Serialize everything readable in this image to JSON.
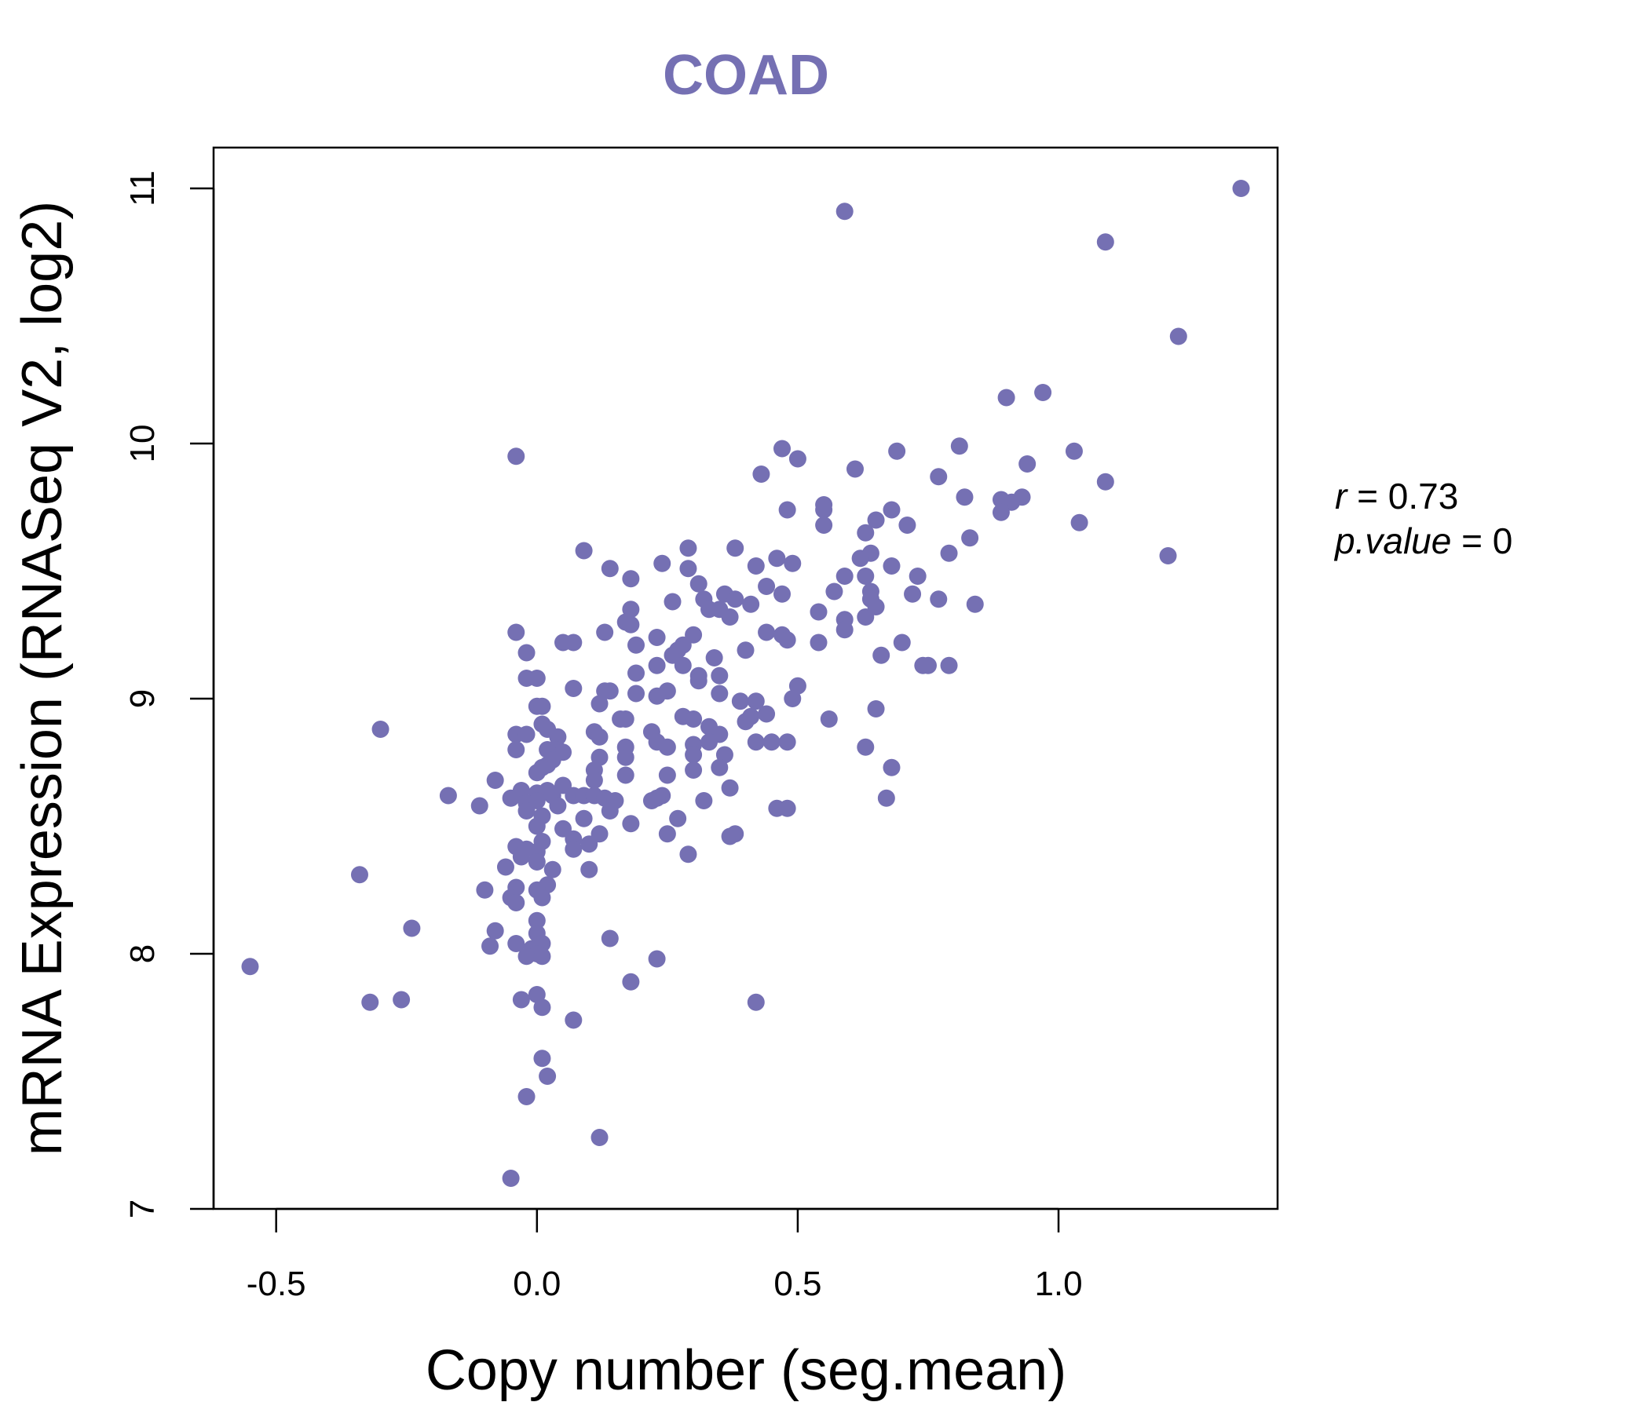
{
  "chart_data": {
    "type": "scatter",
    "title": "COAD",
    "xlabel": "Copy number (seg.mean)",
    "ylabel": "mRNA Expression (RNASeq V2, log2)",
    "xlim": [
      -0.62,
      1.42
    ],
    "ylim": [
      7.0,
      11.16
    ],
    "xticks": [
      -0.5,
      0.0,
      0.5,
      1.0
    ],
    "xtick_labels": [
      "-0.5",
      "0.0",
      "0.5",
      "1.0"
    ],
    "yticks": [
      7,
      8,
      9,
      10,
      11
    ],
    "ytick_labels": [
      "7",
      "8",
      "9",
      "10",
      "11"
    ],
    "grid": false,
    "point_color": "#7570b3",
    "annotations": {
      "r_symbol": "r",
      "r_value": "0.73",
      "p_symbol": "p.value",
      "p_value": "0"
    },
    "series": [
      {
        "points": [
          [
            1.35,
            11.0
          ],
          [
            0.59,
            10.91
          ],
          [
            1.09,
            10.79
          ],
          [
            1.23,
            10.42
          ],
          [
            0.97,
            10.2
          ],
          [
            0.9,
            10.18
          ],
          [
            0.81,
            9.99
          ],
          [
            0.47,
            9.98
          ],
          [
            0.69,
            9.97
          ],
          [
            1.03,
            9.97
          ],
          [
            0.5,
            9.94
          ],
          [
            -0.04,
            9.95
          ],
          [
            0.94,
            9.92
          ],
          [
            0.61,
            9.9
          ],
          [
            0.43,
            9.88
          ],
          [
            0.77,
            9.87
          ],
          [
            1.09,
            9.85
          ],
          [
            0.82,
            9.79
          ],
          [
            0.93,
            9.79
          ],
          [
            0.89,
            9.78
          ],
          [
            0.91,
            9.77
          ],
          [
            0.55,
            9.76
          ],
          [
            0.55,
            9.74
          ],
          [
            0.48,
            9.74
          ],
          [
            0.68,
            9.74
          ],
          [
            0.89,
            9.73
          ],
          [
            0.65,
            9.7
          ],
          [
            1.04,
            9.69
          ],
          [
            0.55,
            9.68
          ],
          [
            0.71,
            9.68
          ],
          [
            0.63,
            9.65
          ],
          [
            0.83,
            9.63
          ],
          [
            0.38,
            9.59
          ],
          [
            0.29,
            9.59
          ],
          [
            0.09,
            9.58
          ],
          [
            0.79,
            9.57
          ],
          [
            0.64,
            9.57
          ],
          [
            0.62,
            9.55
          ],
          [
            1.21,
            9.56
          ],
          [
            0.46,
            9.55
          ],
          [
            0.24,
            9.53
          ],
          [
            0.49,
            9.53
          ],
          [
            0.42,
            9.52
          ],
          [
            0.68,
            9.52
          ],
          [
            0.14,
            9.51
          ],
          [
            0.29,
            9.51
          ],
          [
            0.59,
            9.48
          ],
          [
            0.63,
            9.48
          ],
          [
            0.73,
            9.48
          ],
          [
            0.18,
            9.47
          ],
          [
            0.31,
            9.45
          ],
          [
            0.44,
            9.44
          ],
          [
            0.64,
            9.42
          ],
          [
            0.57,
            9.42
          ],
          [
            0.47,
            9.41
          ],
          [
            0.36,
            9.41
          ],
          [
            0.72,
            9.41
          ],
          [
            0.32,
            9.39
          ],
          [
            0.38,
            9.39
          ],
          [
            0.64,
            9.39
          ],
          [
            0.77,
            9.39
          ],
          [
            0.26,
            9.38
          ],
          [
            0.41,
            9.37
          ],
          [
            0.84,
            9.37
          ],
          [
            0.65,
            9.36
          ],
          [
            0.33,
            9.35
          ],
          [
            0.35,
            9.35
          ],
          [
            0.18,
            9.35
          ],
          [
            0.54,
            9.34
          ],
          [
            0.37,
            9.32
          ],
          [
            0.63,
            9.32
          ],
          [
            0.59,
            9.31
          ],
          [
            0.17,
            9.3
          ],
          [
            0.18,
            9.29
          ],
          [
            0.59,
            9.27
          ],
          [
            0.13,
            9.26
          ],
          [
            0.44,
            9.26
          ],
          [
            0.47,
            9.25
          ],
          [
            -0.04,
            9.26
          ],
          [
            0.3,
            9.25
          ],
          [
            0.23,
            9.24
          ],
          [
            0.48,
            9.23
          ],
          [
            0.7,
            9.22
          ],
          [
            0.05,
            9.22
          ],
          [
            0.54,
            9.22
          ],
          [
            0.07,
            9.22
          ],
          [
            0.19,
            9.21
          ],
          [
            0.28,
            9.21
          ],
          [
            0.27,
            9.19
          ],
          [
            0.4,
            9.19
          ],
          [
            -0.02,
            9.18
          ],
          [
            0.26,
            9.17
          ],
          [
            0.66,
            9.17
          ],
          [
            0.34,
            9.16
          ],
          [
            0.28,
            9.13
          ],
          [
            0.23,
            9.13
          ],
          [
            0.74,
            9.13
          ],
          [
            0.75,
            9.13
          ],
          [
            0.79,
            9.13
          ],
          [
            0.19,
            9.1
          ],
          [
            0.31,
            9.09
          ],
          [
            0.35,
            9.09
          ],
          [
            0.31,
            9.07
          ],
          [
            -0.02,
            9.08
          ],
          [
            0.0,
            9.08
          ],
          [
            0.5,
            9.05
          ],
          [
            0.07,
            9.04
          ],
          [
            0.13,
            9.03
          ],
          [
            0.14,
            9.03
          ],
          [
            0.25,
            9.03
          ],
          [
            0.35,
            9.02
          ],
          [
            0.19,
            9.02
          ],
          [
            0.23,
            9.01
          ],
          [
            0.49,
            9.0
          ],
          [
            0.39,
            8.99
          ],
          [
            0.42,
            8.99
          ],
          [
            0.12,
            8.98
          ],
          [
            0.0,
            8.97
          ],
          [
            0.01,
            8.97
          ],
          [
            0.65,
            8.96
          ],
          [
            0.44,
            8.94
          ],
          [
            0.28,
            8.93
          ],
          [
            0.3,
            8.92
          ],
          [
            0.16,
            8.92
          ],
          [
            0.41,
            8.93
          ],
          [
            0.56,
            8.92
          ],
          [
            0.17,
            8.92
          ],
          [
            0.4,
            8.91
          ],
          [
            0.01,
            8.9
          ],
          [
            0.33,
            8.89
          ],
          [
            0.02,
            8.88
          ],
          [
            -0.3,
            8.88
          ],
          [
            0.22,
            8.87
          ],
          [
            0.11,
            8.87
          ],
          [
            0.04,
            8.85
          ],
          [
            0.35,
            8.86
          ],
          [
            -0.04,
            8.86
          ],
          [
            0.12,
            8.85
          ],
          [
            -0.02,
            8.86
          ],
          [
            0.33,
            8.83
          ],
          [
            0.42,
            8.83
          ],
          [
            0.45,
            8.83
          ],
          [
            0.48,
            8.83
          ],
          [
            0.23,
            8.83
          ],
          [
            0.3,
            8.82
          ],
          [
            0.25,
            8.81
          ],
          [
            0.17,
            8.81
          ],
          [
            0.04,
            8.8
          ],
          [
            0.63,
            8.81
          ],
          [
            0.02,
            8.8
          ],
          [
            -0.04,
            8.8
          ],
          [
            0.05,
            8.79
          ],
          [
            0.3,
            8.78
          ],
          [
            0.36,
            8.78
          ],
          [
            0.12,
            8.77
          ],
          [
            0.17,
            8.77
          ],
          [
            0.03,
            8.76
          ],
          [
            0.02,
            8.74
          ],
          [
            0.35,
            8.73
          ],
          [
            0.68,
            8.73
          ],
          [
            0.01,
            8.73
          ],
          [
            0.11,
            8.72
          ],
          [
            0.3,
            8.72
          ],
          [
            0.17,
            8.7
          ],
          [
            0.25,
            8.7
          ],
          [
            0.0,
            8.71
          ],
          [
            -0.08,
            8.68
          ],
          [
            0.11,
            8.68
          ],
          [
            0.05,
            8.66
          ],
          [
            0.37,
            8.65
          ],
          [
            0.02,
            8.64
          ],
          [
            -0.03,
            8.64
          ],
          [
            0.0,
            8.63
          ],
          [
            0.03,
            8.62
          ],
          [
            0.07,
            8.62
          ],
          [
            0.09,
            8.62
          ],
          [
            0.11,
            8.62
          ],
          [
            0.24,
            8.62
          ],
          [
            0.13,
            8.61
          ],
          [
            -0.05,
            8.61
          ],
          [
            0.67,
            8.61
          ],
          [
            -0.17,
            8.62
          ],
          [
            0.23,
            8.61
          ],
          [
            0.15,
            8.6
          ],
          [
            0.22,
            8.6
          ],
          [
            0.32,
            8.6
          ],
          [
            0.0,
            8.6
          ],
          [
            -0.02,
            8.59
          ],
          [
            0.04,
            8.58
          ],
          [
            -0.11,
            8.58
          ],
          [
            0.46,
            8.57
          ],
          [
            0.48,
            8.57
          ],
          [
            -0.02,
            8.56
          ],
          [
            0.14,
            8.56
          ],
          [
            0.01,
            8.54
          ],
          [
            0.27,
            8.53
          ],
          [
            0.09,
            8.53
          ],
          [
            0.18,
            8.51
          ],
          [
            0.0,
            8.5
          ],
          [
            0.05,
            8.49
          ],
          [
            0.12,
            8.47
          ],
          [
            0.25,
            8.47
          ],
          [
            0.38,
            8.47
          ],
          [
            0.37,
            8.46
          ],
          [
            0.07,
            8.45
          ],
          [
            0.01,
            8.44
          ],
          [
            0.1,
            8.43
          ],
          [
            -0.04,
            8.42
          ],
          [
            0.07,
            8.41
          ],
          [
            -0.02,
            8.41
          ],
          [
            0.0,
            8.4
          ],
          [
            0.29,
            8.39
          ],
          [
            -0.03,
            8.38
          ],
          [
            0.0,
            8.36
          ],
          [
            -0.06,
            8.34
          ],
          [
            0.03,
            8.33
          ],
          [
            0.1,
            8.33
          ],
          [
            -0.34,
            8.31
          ],
          [
            0.02,
            8.27
          ],
          [
            -0.04,
            8.26
          ],
          [
            0.0,
            8.25
          ],
          [
            -0.1,
            8.25
          ],
          [
            -0.05,
            8.22
          ],
          [
            0.01,
            8.22
          ],
          [
            -0.04,
            8.2
          ],
          [
            0.0,
            8.13
          ],
          [
            -0.24,
            8.1
          ],
          [
            -0.08,
            8.09
          ],
          [
            0.0,
            8.08
          ],
          [
            0.14,
            8.06
          ],
          [
            -0.04,
            8.04
          ],
          [
            0.01,
            8.04
          ],
          [
            -0.09,
            8.03
          ],
          [
            -0.01,
            8.02
          ],
          [
            0.0,
            8.0
          ],
          [
            -0.02,
            7.99
          ],
          [
            0.01,
            7.99
          ],
          [
            0.23,
            7.98
          ],
          [
            -0.55,
            7.95
          ],
          [
            0.18,
            7.89
          ],
          [
            0.0,
            7.84
          ],
          [
            -0.03,
            7.82
          ],
          [
            -0.26,
            7.82
          ],
          [
            0.42,
            7.81
          ],
          [
            -0.32,
            7.81
          ],
          [
            0.01,
            7.79
          ],
          [
            0.07,
            7.74
          ],
          [
            0.01,
            7.59
          ],
          [
            0.02,
            7.52
          ],
          [
            -0.02,
            7.44
          ],
          [
            0.12,
            7.28
          ],
          [
            -0.05,
            7.12
          ]
        ]
      }
    ]
  }
}
